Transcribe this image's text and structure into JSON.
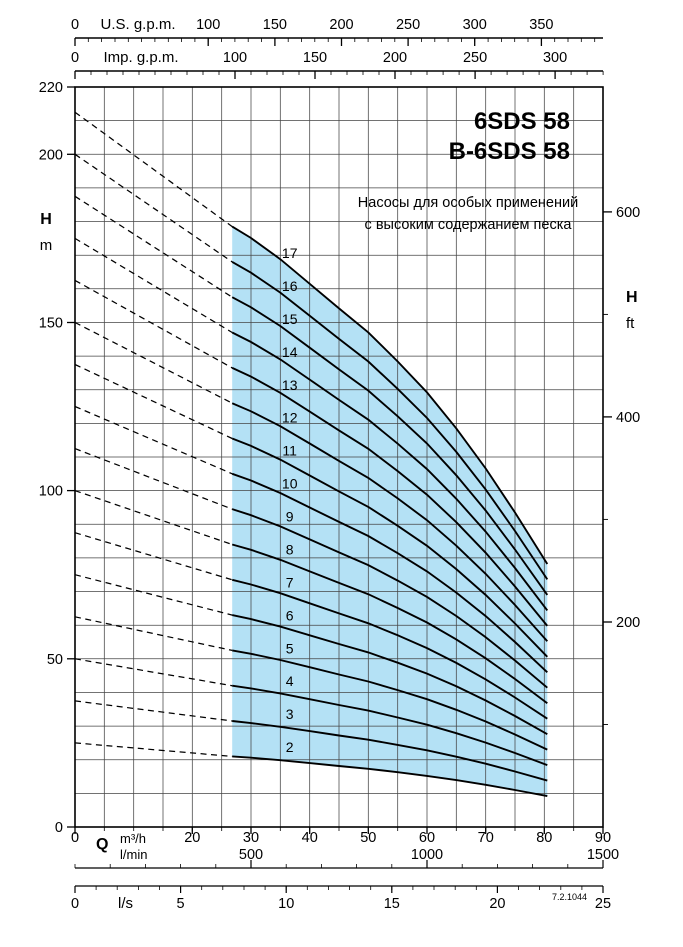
{
  "title": {
    "line1": "6SDS 58",
    "line2": "B-6SDS 58"
  },
  "subtitle": {
    "line1": "Насосы для особых применений",
    "line2": "с высоким содержанием песка"
  },
  "code": "7.2.1044",
  "colors": {
    "region": "#b4e1f5",
    "grid": "#444444",
    "curve": "#000000",
    "axis": "#000000"
  },
  "axes": {
    "us_gpm": {
      "label": "U.S. g.p.m.",
      "ticks": [
        0,
        100,
        150,
        200,
        250,
        300,
        350
      ],
      "gpm_per_m3h": 4.40287,
      "minor_step": 10,
      "minor_max": 390
    },
    "imp_gpm": {
      "label": "Imp. g.p.m.",
      "ticks": [
        0,
        100,
        150,
        200,
        250,
        300
      ],
      "gpm_per_m3h": 3.66615,
      "minor_step": 10,
      "minor_max": 330
    },
    "h_left": {
      "label": "H",
      "unit": "m",
      "min": 0,
      "max": 220,
      "ticks": [
        0,
        50,
        100,
        150,
        200,
        220
      ],
      "grid_step": 10
    },
    "h_right": {
      "label": "H",
      "unit": "ft",
      "ticks": [
        200,
        400,
        600
      ],
      "minor_ticks": [
        100,
        300,
        500
      ],
      "m_per_ft": 0.3048
    },
    "q": {
      "label": "Q",
      "unit_m3h": "m³/h",
      "unit_lmin": "l/min",
      "min": 0,
      "max": 90,
      "ticks_m3h": [
        0,
        20,
        30,
        40,
        50,
        60,
        70,
        80,
        90
      ],
      "grid_step": 5,
      "ticks_lmin": [
        500,
        1000,
        1500
      ],
      "lmin_per_m3h": 16.6667,
      "lmin_minor_step": 100,
      "lmin_max": 1500
    },
    "ls": {
      "unit": "l/s",
      "ticks": [
        0,
        5,
        10,
        15,
        20,
        25
      ],
      "m3h_per_ls": 3.6,
      "minor_step": 1,
      "minor_max": 25
    }
  },
  "chart_data": {
    "type": "line",
    "title": "6SDS 58 / B-6SDS 58 multi-stage submersible pump performance curves",
    "xlabel": "Q (m³/h, l/min, l/s; U.S. g.p.m.; Imp. g.p.m.)",
    "ylabel": "H (m, ft)",
    "x_range_m3h": [
      0,
      90
    ],
    "y_range_m": [
      0,
      220
    ],
    "grid": true,
    "stages": [
      2,
      3,
      4,
      5,
      6,
      7,
      8,
      9,
      10,
      11,
      12,
      13,
      14,
      15,
      16,
      17
    ],
    "curve_rule": "head_m of curve N = N × head_per_stage_m at same flow",
    "dashed_segment": {
      "q_m3h": [
        0,
        26.8
      ],
      "head_per_stage_m": [
        12.5,
        10.5
      ]
    },
    "solid_segment": {
      "q_m3h": [
        26.8,
        30,
        35,
        40,
        45,
        50,
        55,
        60,
        65,
        70,
        75,
        80.5
      ],
      "head_per_stage_m": [
        10.5,
        10.3,
        9.93,
        9.5,
        9.07,
        8.65,
        8.14,
        7.6,
        6.97,
        6.27,
        5.5,
        4.6
      ]
    },
    "operating_region": {
      "q_min_m3h": 26.8,
      "q_max_m3h": 80.5,
      "fill": "#b4e1f5"
    },
    "label_x_m3h": 36.6
  }
}
